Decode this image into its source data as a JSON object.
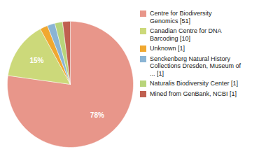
{
  "chart_data": {
    "type": "pie",
    "categories": [
      "Centre for Biodiversity\nGenomics [51]",
      "Canadian Centre for DNA\nBarcoding [10]",
      "Unknown [1]",
      "Senckenberg Natural History\nCollections Dresden, Museum of\n... [1]",
      "Naturalis Biodiversity Center [1]",
      "Mined from GenBank, NCBI [1]"
    ],
    "values": [
      78,
      15,
      2,
      2,
      2,
      2
    ],
    "value_labels": [
      "78%",
      "15%",
      null,
      null,
      null,
      null
    ],
    "colors": [
      "#e8968a",
      "#ccd97a",
      "#f0a830",
      "#8ab4d4",
      "#b8d47a",
      "#c06050"
    ],
    "data_labels": true,
    "legend": "right"
  }
}
